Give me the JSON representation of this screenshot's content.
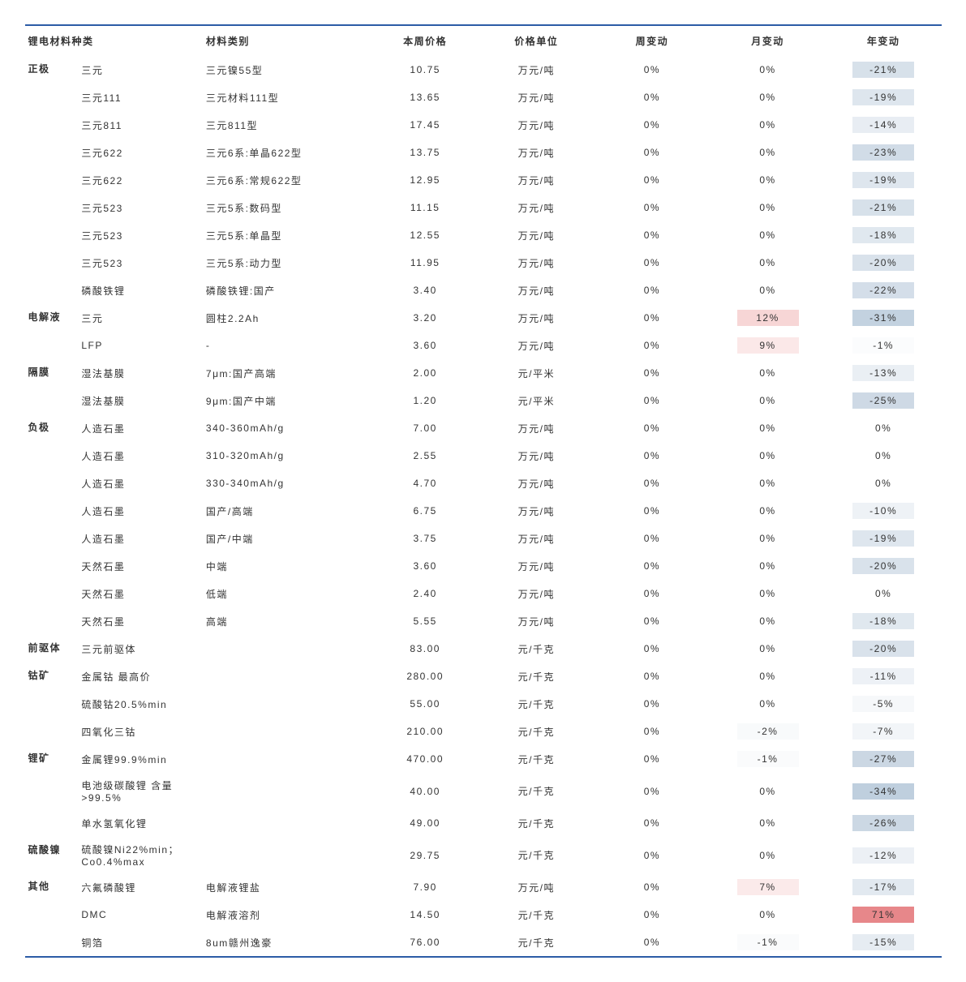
{
  "headers": {
    "h1": "锂电材料种类",
    "h2": "材料类别",
    "h3": "本周价格",
    "h4": "价格单位",
    "h5": "周变动",
    "h6": "月变动",
    "h7": "年变动"
  },
  "colors": {
    "rule": "#2c5ca6",
    "bg_pos_strong": "#e7878a",
    "bg_pos_mid": "#f7d6d6",
    "bg_neg_light": "#f3f6f9",
    "bg_neg_mid": "#d7e1ea",
    "bg_neg_strong": "#bfcfde",
    "bg_neutral": "#ffffff"
  },
  "rows": [
    {
      "cat": "正极",
      "sub": "三元",
      "spec": "三元镍55型",
      "price": "10.75",
      "unit": "万元/吨",
      "w": "0%",
      "m": "0%",
      "y": "-21%",
      "yb": "#d7e1ea"
    },
    {
      "cat": "",
      "sub": "三元111",
      "spec": "三元材料111型",
      "price": "13.65",
      "unit": "万元/吨",
      "w": "0%",
      "m": "0%",
      "y": "-19%",
      "yb": "#dee6ee"
    },
    {
      "cat": "",
      "sub": "三元811",
      "spec": "三元811型",
      "price": "17.45",
      "unit": "万元/吨",
      "w": "0%",
      "m": "0%",
      "y": "-14%",
      "yb": "#e8edf3"
    },
    {
      "cat": "",
      "sub": "三元622",
      "spec": "三元6系:单晶622型",
      "price": "13.75",
      "unit": "万元/吨",
      "w": "0%",
      "m": "0%",
      "y": "-23%",
      "yb": "#d1dce7"
    },
    {
      "cat": "",
      "sub": "三元622",
      "spec": "三元6系:常规622型",
      "price": "12.95",
      "unit": "万元/吨",
      "w": "0%",
      "m": "0%",
      "y": "-19%",
      "yb": "#dee6ee"
    },
    {
      "cat": "",
      "sub": "三元523",
      "spec": "三元5系:数码型",
      "price": "11.15",
      "unit": "万元/吨",
      "w": "0%",
      "m": "0%",
      "y": "-21%",
      "yb": "#d7e1ea"
    },
    {
      "cat": "",
      "sub": "三元523",
      "spec": "三元5系:单晶型",
      "price": "12.55",
      "unit": "万元/吨",
      "w": "0%",
      "m": "0%",
      "y": "-18%",
      "yb": "#e0e8ef"
    },
    {
      "cat": "",
      "sub": "三元523",
      "spec": "三元5系:动力型",
      "price": "11.95",
      "unit": "万元/吨",
      "w": "0%",
      "m": "0%",
      "y": "-20%",
      "yb": "#d9e2eb"
    },
    {
      "cat": "",
      "sub": "磷酸铁锂",
      "spec": "磷酸铁锂:国产",
      "price": "3.40",
      "unit": "万元/吨",
      "w": "0%",
      "m": "0%",
      "y": "-22%",
      "yb": "#d4dee9"
    },
    {
      "cat": "电解液",
      "sub": "三元",
      "spec": "圆柱2.2Ah",
      "price": "3.20",
      "unit": "万元/吨",
      "w": "0%",
      "m": "12%",
      "y": "-31%",
      "mb": "#f7d6d6",
      "yb": "#c3d2e0"
    },
    {
      "cat": "",
      "sub": "LFP",
      "spec": "-",
      "price": "3.60",
      "unit": "万元/吨",
      "w": "0%",
      "m": "9%",
      "y": "-1%",
      "mb": "#fbe8e8",
      "yb": "#fbfcfd"
    },
    {
      "cat": "隔膜",
      "sub": "湿法基膜",
      "spec": "7μm:国产高端",
      "price": "2.00",
      "unit": "元/平米",
      "w": "0%",
      "m": "0%",
      "y": "-13%",
      "yb": "#eaeff4"
    },
    {
      "cat": "",
      "sub": "湿法基膜",
      "spec": "9μm:国产中端",
      "price": "1.20",
      "unit": "元/平米",
      "w": "0%",
      "m": "0%",
      "y": "-25%",
      "yb": "#ced9e5"
    },
    {
      "cat": "负极",
      "sub": "人造石墨",
      "spec": "340-360mAh/g",
      "price": "7.00",
      "unit": "万元/吨",
      "w": "0%",
      "m": "0%",
      "y": "0%",
      "yb": "#ffffff"
    },
    {
      "cat": "",
      "sub": "人造石墨",
      "spec": "310-320mAh/g",
      "price": "2.55",
      "unit": "万元/吨",
      "w": "0%",
      "m": "0%",
      "y": "0%",
      "yb": "#ffffff"
    },
    {
      "cat": "",
      "sub": "人造石墨",
      "spec": "330-340mAh/g",
      "price": "4.70",
      "unit": "万元/吨",
      "w": "0%",
      "m": "0%",
      "y": "0%",
      "yb": "#ffffff"
    },
    {
      "cat": "",
      "sub": "人造石墨",
      "spec": "国产/高端",
      "price": "6.75",
      "unit": "万元/吨",
      "w": "0%",
      "m": "0%",
      "y": "-10%",
      "yb": "#eef2f6"
    },
    {
      "cat": "",
      "sub": "人造石墨",
      "spec": "国产/中端",
      "price": "3.75",
      "unit": "万元/吨",
      "w": "0%",
      "m": "0%",
      "y": "-19%",
      "yb": "#dee6ee"
    },
    {
      "cat": "",
      "sub": "天然石墨",
      "spec": "中端",
      "price": "3.60",
      "unit": "万元/吨",
      "w": "0%",
      "m": "0%",
      "y": "-20%",
      "yb": "#d9e2eb"
    },
    {
      "cat": "",
      "sub": "天然石墨",
      "spec": "低端",
      "price": "2.40",
      "unit": "万元/吨",
      "w": "0%",
      "m": "0%",
      "y": "0%",
      "yb": "#ffffff"
    },
    {
      "cat": "",
      "sub": "天然石墨",
      "spec": "高端",
      "price": "5.55",
      "unit": "万元/吨",
      "w": "0%",
      "m": "0%",
      "y": "-18%",
      "yb": "#e0e8ef"
    },
    {
      "cat": "前驱体",
      "sub": "三元前驱体",
      "spec": "",
      "price": "83.00",
      "unit": "元/千克",
      "w": "0%",
      "m": "0%",
      "y": "-20%",
      "yb": "#d9e2eb"
    },
    {
      "cat": "钴矿",
      "sub": "金属钴 最高价",
      "spec": "",
      "price": "280.00",
      "unit": "元/千克",
      "w": "0%",
      "m": "0%",
      "y": "-11%",
      "yb": "#edf1f6"
    },
    {
      "cat": "",
      "sub": "硫酸钴20.5%min",
      "spec": "",
      "price": "55.00",
      "unit": "元/千克",
      "w": "0%",
      "m": "0%",
      "y": "-5%",
      "yb": "#f6f8fa"
    },
    {
      "cat": "",
      "sub": "四氧化三钴",
      "spec": "",
      "price": "210.00",
      "unit": "元/千克",
      "w": "0%",
      "m": "-2%",
      "y": "-7%",
      "mb": "#f8fafb",
      "yb": "#f2f5f8"
    },
    {
      "cat": "锂矿",
      "sub": "金属锂99.9%min",
      "spec": "",
      "price": "470.00",
      "unit": "元/千克",
      "w": "0%",
      "m": "-1%",
      "y": "-27%",
      "mb": "#fafbfc",
      "yb": "#cbd7e3"
    },
    {
      "cat": "",
      "sub": "电池级碳酸锂   含量>99.5%",
      "spec": "",
      "price": "40.00",
      "unit": "元/千克",
      "w": "0%",
      "m": "0%",
      "y": "-34%",
      "yb": "#bfcfde"
    },
    {
      "cat": "",
      "sub": "单水氢氧化锂",
      "spec": "",
      "price": "49.00",
      "unit": "元/千克",
      "w": "0%",
      "m": "0%",
      "y": "-26%",
      "yb": "#ccd8e4"
    },
    {
      "cat": "硫酸镍",
      "sub": "硫酸镍Ni22%min；Co0.4%max",
      "spec": "",
      "price": "29.75",
      "unit": "元/千克",
      "w": "0%",
      "m": "0%",
      "y": "-12%",
      "yb": "#ecf0f5"
    },
    {
      "cat": "其他",
      "sub": "六氟磷酸锂",
      "spec": "电解液锂盐",
      "price": "7.90",
      "unit": "万元/吨",
      "w": "0%",
      "m": "7%",
      "y": "-17%",
      "mb": "#fbeaea",
      "yb": "#e2e9f0"
    },
    {
      "cat": "",
      "sub": "DMC",
      "spec": "电解液溶剂",
      "price": "14.50",
      "unit": "元/千克",
      "w": "0%",
      "m": "0%",
      "y": "71%",
      "yb": "#e7878a"
    },
    {
      "cat": "",
      "sub": "铜箔",
      "spec": "8um赣州逸豪",
      "price": "76.00",
      "unit": "元/千克",
      "w": "0%",
      "m": "-1%",
      "y": "-15%",
      "mb": "#fafbfc",
      "yb": "#e6ecf2"
    }
  ]
}
